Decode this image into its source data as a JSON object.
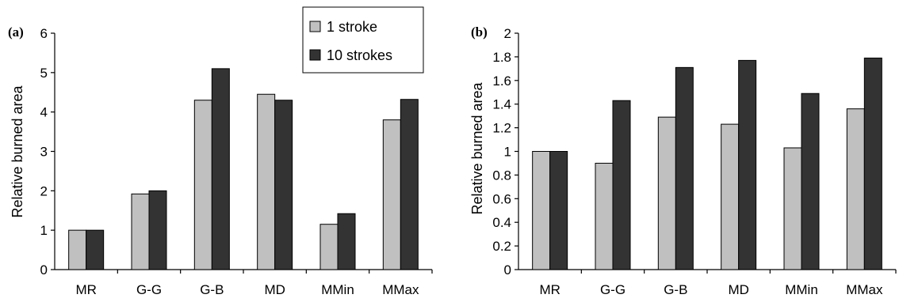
{
  "chart_data": [
    {
      "type": "bar",
      "panel_label": "(a)",
      "ylabel": "Relative burned area",
      "ylim": [
        0,
        6
      ],
      "yticks": [
        "0",
        "1",
        "2",
        "3",
        "4",
        "5",
        "6"
      ],
      "categories": [
        "MR",
        "G-G",
        "G-B",
        "MD",
        "MMin",
        "MMax"
      ],
      "series": [
        {
          "name": "1 stroke",
          "values": [
            1.0,
            1.92,
            4.3,
            4.45,
            1.15,
            3.8
          ]
        },
        {
          "name": "10 strokes",
          "values": [
            1.0,
            2.0,
            5.1,
            4.3,
            1.42,
            4.32
          ]
        }
      ],
      "legend": {
        "placement": "top-right",
        "items": [
          {
            "label": "1 stroke",
            "color": "#c0c0c0"
          },
          {
            "label": "10 strokes",
            "color": "#333333"
          }
        ]
      },
      "grid": false
    },
    {
      "type": "bar",
      "panel_label": "(b)",
      "ylabel": "Relative burned area",
      "ylim": [
        0,
        2
      ],
      "yticks": [
        "0",
        "0.2",
        "0.4",
        "0.6",
        "0.8",
        "1",
        "1.2",
        "1.4",
        "1.6",
        "1.8",
        "2"
      ],
      "categories": [
        "MR",
        "G-G",
        "G-B",
        "MD",
        "MMin",
        "MMax"
      ],
      "series": [
        {
          "name": "1 stroke",
          "values": [
            1.0,
            0.9,
            1.29,
            1.23,
            1.03,
            1.36
          ]
        },
        {
          "name": "10 strokes",
          "values": [
            1.0,
            1.43,
            1.71,
            1.77,
            1.49,
            1.79
          ]
        }
      ],
      "grid": false
    }
  ],
  "colors": {
    "light": "#c0c0c0",
    "dark": "#333333",
    "axis": "#000000"
  }
}
